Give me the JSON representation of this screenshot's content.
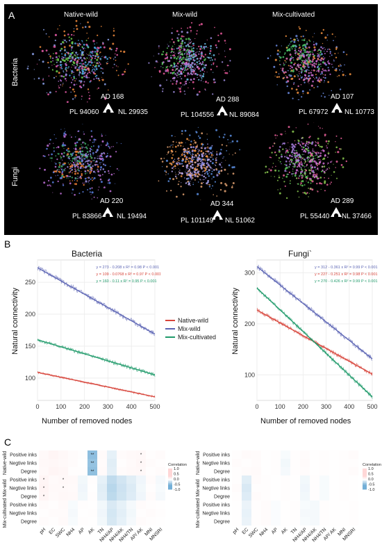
{
  "panel_a": {
    "letter": "A",
    "columns": [
      "Native-wild",
      "Mix-wild",
      "Mix-cultivated"
    ],
    "rows": [
      "Bacteria",
      "Fungi"
    ],
    "networks": [
      {
        "row": "Bacteria",
        "col": "Native-wild",
        "ad": "AD 168",
        "pl": "PL 94060",
        "nl": "NL 29935"
      },
      {
        "row": "Bacteria",
        "col": "Mix-wild",
        "ad": "AD 288",
        "pl": "PL 104556",
        "nl": "NL 89084"
      },
      {
        "row": "Bacteria",
        "col": "Mix-cultivated",
        "ad": "AD 107",
        "pl": "PL 67972",
        "nl": "NL 10773"
      },
      {
        "row": "Fungi",
        "col": "Native-wild",
        "ad": "AD 220",
        "pl": "PL 83866",
        "nl": "NL 19494"
      },
      {
        "row": "Fungi",
        "col": "Mix-wild",
        "ad": "AD 344",
        "pl": "PL 101149",
        "nl": "NL 51062"
      },
      {
        "row": "Fungi",
        "col": "Mix-cultivated",
        "ad": "AD 289",
        "pl": "PL 55440",
        "nl": "NL 37466"
      }
    ]
  },
  "panel_b": {
    "letter": "B",
    "legend": [
      {
        "name": "Native-wild",
        "color": "#d7443a"
      },
      {
        "name": "Mix-wild",
        "color": "#5a63b3"
      },
      {
        "name": "Mix-cultivated",
        "color": "#1f9a6a"
      }
    ]
  },
  "chart_data": [
    {
      "type": "line",
      "title": "Bacteria",
      "xlabel": "Number of removed nodes",
      "ylabel": "Natural connectivity",
      "xlim": [
        0,
        500
      ],
      "ylim": [
        65,
        285
      ],
      "xticks": [
        0,
        100,
        200,
        300,
        400,
        500
      ],
      "yticks": [
        100,
        150,
        200,
        250
      ],
      "grid": true,
      "series": [
        {
          "name": "Mix-wild",
          "color": "#5a63b3",
          "equation": "y = 273 - 0.208 x",
          "r2": "R² = 0.98",
          "p": "P < 0.001",
          "intercept": 273,
          "slope": -0.208,
          "noise": 4
        },
        {
          "name": "Native-wild",
          "color": "#d7443a",
          "equation": "y = 109 - 0.0768 x",
          "r2": "R² = 0.97",
          "p": "P < 0.001",
          "intercept": 109,
          "slope": -0.0768,
          "noise": 1.5
        },
        {
          "name": "Mix-cultivated",
          "color": "#1f9a6a",
          "equation": "y = 160 - 0.11 x",
          "r2": "R² = 0.95",
          "p": "P < 0.001",
          "intercept": 160,
          "slope": -0.11,
          "noise": 3
        }
      ]
    },
    {
      "type": "line",
      "title": "Fungi`",
      "xlabel": "Number of removed nodes",
      "ylabel": "Natural connectivity",
      "xlim": [
        0,
        500
      ],
      "ylim": [
        50,
        325
      ],
      "xticks": [
        0,
        100,
        200,
        300,
        400,
        500
      ],
      "yticks": [
        100,
        200,
        300
      ],
      "grid": true,
      "series": [
        {
          "name": "Mix-wild",
          "color": "#5a63b3",
          "equation": "y = 312 - 0.361 x",
          "r2": "R² = 0.99",
          "p": "P < 0.001",
          "intercept": 312,
          "slope": -0.361,
          "noise": 5
        },
        {
          "name": "Native-wild",
          "color": "#d7443a",
          "equation": "y = 227 - 0.251 x",
          "r2": "R² = 0.98",
          "p": "P < 0.001",
          "intercept": 227,
          "slope": -0.251,
          "noise": 4
        },
        {
          "name": "Mix-cultivated",
          "color": "#1f9a6a",
          "equation": "y = 270 - 0.426 x",
          "r2": "R² = 0.99",
          "p": "P < 0.001",
          "intercept": 270,
          "slope": -0.426,
          "noise": 4
        }
      ]
    },
    {
      "type": "heatmap",
      "rows": [
        "Positive inks",
        "Negtive links",
        "Degree",
        "Positive inks",
        "Negtive links",
        "Degree",
        "Positive inks",
        "Negtive links",
        "Degree"
      ],
      "row_groups": [
        "Native-wild",
        "Mix-wild",
        "Mix-cultivated"
      ],
      "columns": [
        "pH",
        "EC",
        "SWC",
        "NH4",
        "AP",
        "AK",
        "TN",
        "NH4/AP",
        "NH4/AK",
        "NH4/TN",
        "AP/ AK",
        "MNI",
        "MNSRI"
      ],
      "legend_title": "Correlation",
      "legend_ticks": [
        "1.0",
        "0.5",
        "0.0",
        "-0.5",
        "-1.0"
      ],
      "values": [
        [
          0.05,
          0.08,
          0.06,
          0.03,
          0.02,
          -0.45,
          0.04,
          -0.1,
          0.03,
          0.05,
          0.06,
          0.02,
          0.03
        ],
        [
          0.06,
          0.07,
          0.05,
          0.03,
          0.01,
          -0.42,
          0.03,
          -0.12,
          0.02,
          0.04,
          0.07,
          0.03,
          0.02
        ],
        [
          0.05,
          0.08,
          0.07,
          0.02,
          0.02,
          -0.44,
          0.04,
          -0.11,
          0.03,
          0.05,
          0.06,
          0.02,
          0.03
        ],
        [
          0.08,
          0.04,
          0.06,
          0.05,
          -0.05,
          0.02,
          -0.1,
          -0.25,
          -0.18,
          -0.12,
          -0.06,
          0.03,
          -0.04
        ],
        [
          0.09,
          0.05,
          0.05,
          0.04,
          -0.06,
          0.01,
          -0.12,
          -0.28,
          -0.2,
          -0.14,
          -0.05,
          0.02,
          -0.03
        ],
        [
          0.08,
          0.04,
          0.06,
          0.05,
          -0.05,
          0.02,
          -0.11,
          -0.26,
          -0.19,
          -0.13,
          -0.06,
          0.03,
          -0.04
        ],
        [
          0.03,
          0.02,
          0.04,
          -0.03,
          0.02,
          0.01,
          -0.05,
          -0.15,
          -0.1,
          -0.04,
          0.03,
          0.02,
          0.01
        ],
        [
          0.02,
          0.03,
          0.03,
          -0.04,
          0.01,
          0.02,
          -0.06,
          -0.17,
          -0.11,
          -0.05,
          0.02,
          0.03,
          0.02
        ],
        [
          0.03,
          0.02,
          0.04,
          -0.03,
          0.02,
          0.01,
          -0.05,
          -0.16,
          -0.1,
          -0.04,
          0.03,
          0.02,
          0.01
        ]
      ],
      "stars": [
        [
          null,
          null,
          null,
          null,
          null,
          "**",
          null,
          null,
          null,
          null,
          "*",
          null,
          null
        ],
        [
          null,
          null,
          null,
          null,
          null,
          "**",
          null,
          null,
          null,
          null,
          "*",
          null,
          null
        ],
        [
          null,
          null,
          null,
          null,
          null,
          "**",
          null,
          null,
          null,
          null,
          "*",
          null,
          null
        ],
        [
          "*",
          null,
          "*",
          null,
          null,
          null,
          null,
          null,
          null,
          null,
          null,
          null,
          null
        ],
        [
          "*",
          null,
          "*",
          null,
          null,
          null,
          null,
          null,
          null,
          null,
          null,
          null,
          null
        ],
        [
          "*",
          null,
          null,
          null,
          null,
          null,
          null,
          null,
          null,
          null,
          null,
          null,
          null
        ],
        [
          null,
          null,
          null,
          null,
          null,
          null,
          null,
          null,
          null,
          null,
          null,
          null,
          null
        ],
        [
          null,
          null,
          null,
          null,
          null,
          null,
          null,
          null,
          null,
          null,
          null,
          null,
          null
        ],
        [
          null,
          null,
          null,
          null,
          null,
          null,
          null,
          null,
          null,
          null,
          null,
          null,
          null
        ]
      ]
    },
    {
      "type": "heatmap",
      "rows": [
        "Positive inks",
        "Negtive links",
        "Degree",
        "Positive inks",
        "Negtive links",
        "Degree",
        "Positive inks",
        "Negtive links",
        "Degree"
      ],
      "row_groups": [
        "Native-wild",
        "Mix-wild",
        "Mix-cultivated"
      ],
      "columns": [
        "pH",
        "EC",
        "SWC",
        "NH4",
        "AP",
        "AK",
        "TN",
        "NH4/AP",
        "NH4/AK",
        "NH4/TN",
        "AP/ AK",
        "MNI",
        "MNSRI"
      ],
      "legend_title": "Correlation",
      "legend_ticks": [
        "1.0",
        "0.5",
        "0.0",
        "-0.5",
        "-1.0"
      ],
      "values": [
        [
          0.02,
          0.04,
          0.03,
          0.01,
          0.02,
          -0.03,
          0.02,
          0.03,
          0.01,
          0.02,
          0.01,
          0.02,
          0.03
        ],
        [
          0.03,
          0.02,
          0.03,
          0.01,
          0.02,
          -0.05,
          0.02,
          0.04,
          0.01,
          0.02,
          0.01,
          0.02,
          0.02
        ],
        [
          0.02,
          0.03,
          0.04,
          0.01,
          0.02,
          -0.04,
          0.02,
          0.03,
          0.01,
          0.02,
          0.01,
          0.02,
          0.03
        ],
        [
          0.02,
          -0.12,
          0.03,
          0.02,
          0.01,
          0.02,
          0.01,
          -0.05,
          0.02,
          -0.03,
          0.01,
          0.02,
          0.01
        ],
        [
          0.03,
          -0.15,
          0.02,
          0.02,
          0.01,
          0.02,
          0.01,
          -0.06,
          0.02,
          -0.03,
          0.01,
          0.02,
          0.01
        ],
        [
          0.02,
          -0.13,
          0.03,
          0.02,
          0.01,
          0.02,
          0.01,
          -0.05,
          0.02,
          -0.03,
          0.01,
          0.02,
          0.01
        ],
        [
          0.01,
          -0.08,
          0.02,
          0.03,
          -0.02,
          0.01,
          0.02,
          -0.03,
          -0.04,
          0.02,
          0.01,
          0.01,
          0.02
        ],
        [
          0.01,
          -0.09,
          0.02,
          0.03,
          -0.02,
          0.01,
          0.02,
          -0.04,
          -0.04,
          0.02,
          0.01,
          0.01,
          0.02
        ],
        [
          0.01,
          -0.08,
          0.02,
          0.03,
          -0.02,
          0.01,
          0.02,
          -0.03,
          -0.04,
          0.02,
          0.01,
          0.01,
          0.02
        ]
      ],
      "stars": []
    }
  ]
}
